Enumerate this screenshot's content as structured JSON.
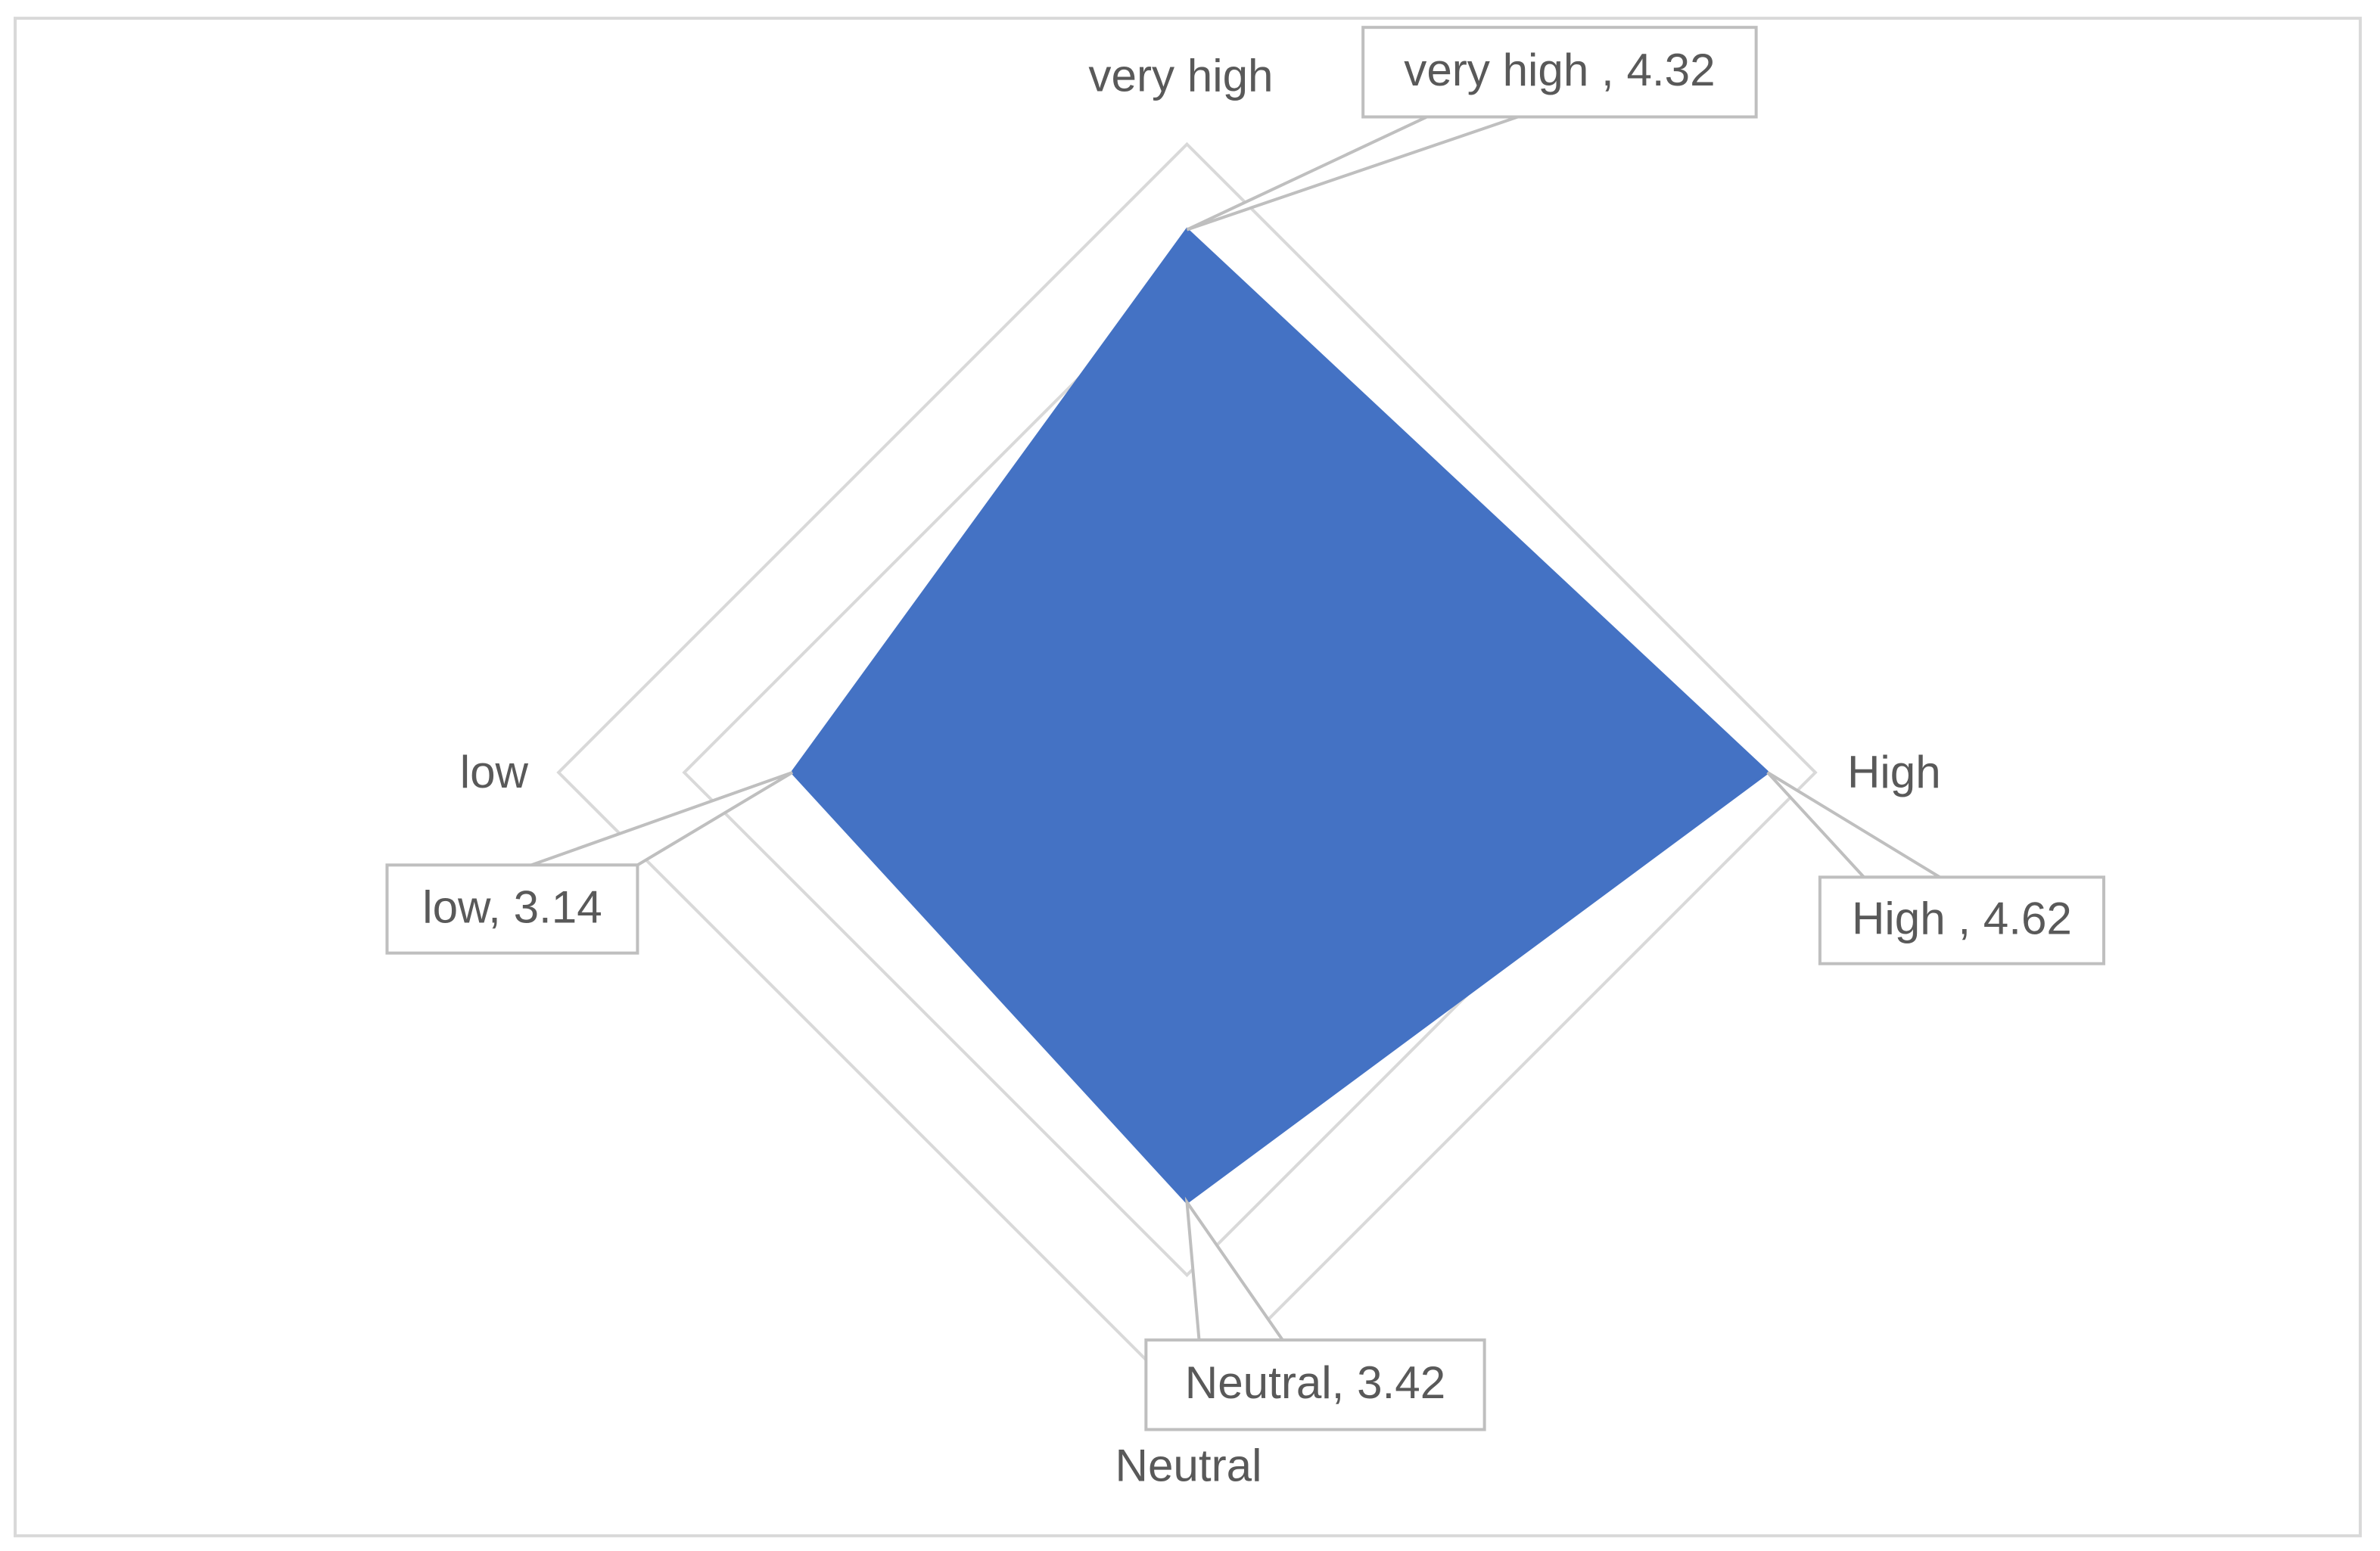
{
  "chart_data": {
    "type": "radar",
    "categories": [
      "very high",
      "High",
      "Neutral",
      "low"
    ],
    "values": [
      4.32,
      4.62,
      3.42,
      3.14
    ],
    "value_labels": [
      "very high , 4.32",
      "High , 4.62",
      "Neutral, 3.42",
      "low, 3.14"
    ],
    "color": "#4472c4",
    "ylim": [
      0,
      5
    ],
    "yticks": [
      0,
      1,
      2,
      3,
      4,
      5
    ],
    "grid": true
  }
}
